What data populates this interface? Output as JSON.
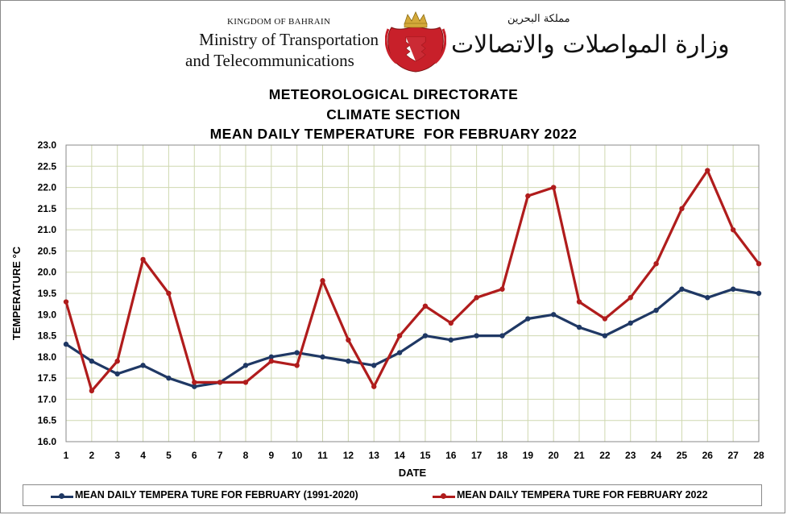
{
  "header": {
    "kingdom_en": "KINGDOM OF BAHRAIN",
    "ministry_en_line1": "Ministry of Transportation",
    "ministry_en_line2": "and Telecommunications",
    "kingdom_ar": "مملكة البحرين",
    "ministry_ar": "وزارة المواصلات والاتصالات",
    "emblem_icon": "bahrain-coat-of-arms-icon"
  },
  "chart_data": {
    "type": "line",
    "title": "METEOROLOGICAL DIRECTORATE",
    "subtitle": "CLIMATE SECTION",
    "subtitle2": "MEAN DAILY TEMPERATURE  FOR FEBRUARY 2022",
    "xlabel": "DATE",
    "ylabel": "TEMPERATURE °C",
    "ylim": [
      16.0,
      23.0
    ],
    "ytick_step": 0.5,
    "grid": true,
    "legend_position": "bottom",
    "x": [
      1,
      2,
      3,
      4,
      5,
      6,
      7,
      8,
      9,
      10,
      11,
      12,
      13,
      14,
      15,
      16,
      17,
      18,
      19,
      20,
      21,
      22,
      23,
      24,
      25,
      26,
      27,
      28
    ],
    "series": [
      {
        "name": "MEAN DAILY TEMPERA TURE FOR FEBRUARY (1991-2020)",
        "color": "#1f3864",
        "values": [
          18.3,
          17.9,
          17.6,
          17.8,
          17.5,
          17.3,
          17.4,
          17.8,
          18.0,
          18.1,
          18.0,
          17.9,
          17.8,
          18.1,
          18.5,
          18.4,
          18.5,
          18.5,
          18.9,
          19.0,
          18.7,
          18.5,
          18.8,
          19.1,
          19.6,
          19.4,
          19.6,
          19.5
        ]
      },
      {
        "name": "MEAN DAILY TEMPERA TURE FOR FEBRUARY 2022",
        "color": "#b01c1c",
        "values": [
          19.3,
          17.2,
          17.9,
          20.3,
          19.5,
          17.4,
          17.4,
          17.4,
          17.9,
          17.8,
          19.8,
          18.4,
          17.3,
          18.5,
          19.2,
          18.8,
          19.4,
          19.6,
          21.8,
          22.0,
          19.3,
          18.9,
          19.4,
          20.2,
          21.5,
          22.4,
          21.0,
          20.2
        ]
      }
    ]
  }
}
